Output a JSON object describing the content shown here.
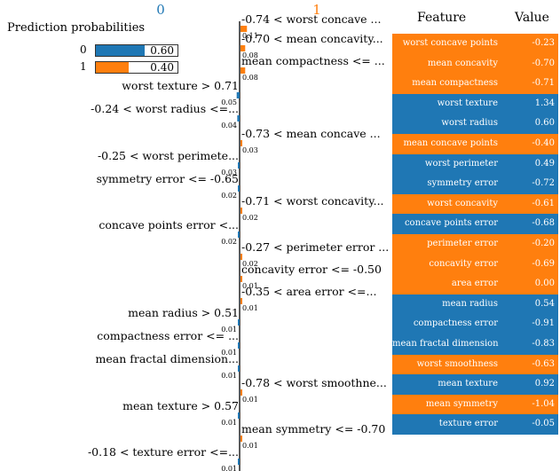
{
  "prediction_probabilities": {
    "title": "Prediction probabilities",
    "items": [
      {
        "label": "0",
        "value": 0.6,
        "value_text": "0.60",
        "color": "#1f77b4"
      },
      {
        "label": "1",
        "value": 0.4,
        "value_text": "0.40",
        "color": "#ff7f0e"
      }
    ]
  },
  "chart_data": {
    "type": "bar",
    "class_headers": {
      "left": "0",
      "right": "1"
    },
    "colors": {
      "left": "#1f77b4",
      "right": "#ff7f0e"
    },
    "features": [
      {
        "label": "-0.74 < worst concave ...",
        "value": 0.11,
        "value_text": "0.11",
        "side": "right"
      },
      {
        "label": "-0.70 < mean concavity...",
        "value": 0.08,
        "value_text": "0.08",
        "side": "right"
      },
      {
        "label": "mean compactness <= ...",
        "value": 0.08,
        "value_text": "0.08",
        "side": "right"
      },
      {
        "label": "worst texture > 0.71",
        "value": 0.05,
        "value_text": "0.05",
        "side": "left"
      },
      {
        "label": "-0.24 < worst radius <=...",
        "value": 0.04,
        "value_text": "0.04",
        "side": "left"
      },
      {
        "label": "-0.73 < mean concave ...",
        "value": 0.03,
        "value_text": "0.03",
        "side": "right"
      },
      {
        "label": "-0.25 < worst perimete...",
        "value": 0.03,
        "value_text": "0.03",
        "side": "left"
      },
      {
        "label": "symmetry error <= -0.65",
        "value": 0.02,
        "value_text": "0.02",
        "side": "left"
      },
      {
        "label": "-0.71 < worst concavity...",
        "value": 0.02,
        "value_text": "0.02",
        "side": "right"
      },
      {
        "label": "concave points error <...",
        "value": 0.02,
        "value_text": "0.02",
        "side": "left"
      },
      {
        "label": "-0.27 < perimeter error ...",
        "value": 0.02,
        "value_text": "0.02",
        "side": "right"
      },
      {
        "label": "concavity error <= -0.50",
        "value": 0.01,
        "value_text": "0.01",
        "side": "right"
      },
      {
        "label": "-0.35 < area error <=...",
        "value": 0.01,
        "value_text": "0.01",
        "side": "right"
      },
      {
        "label": "mean radius > 0.51",
        "value": 0.01,
        "value_text": "0.01",
        "side": "left"
      },
      {
        "label": "compactness error <= ...",
        "value": 0.01,
        "value_text": "0.01",
        "side": "left"
      },
      {
        "label": "mean fractal dimension...",
        "value": 0.01,
        "value_text": "0.01",
        "side": "left"
      },
      {
        "label": "-0.78 < worst smoothne...",
        "value": 0.01,
        "value_text": "0.01",
        "side": "right"
      },
      {
        "label": "mean texture > 0.57",
        "value": 0.01,
        "value_text": "0.01",
        "side": "left"
      },
      {
        "label": "mean symmetry <= -0.70",
        "value": 0.01,
        "value_text": "0.01",
        "side": "right"
      },
      {
        "label": "-0.18 < texture error <=...",
        "value": 0.01,
        "value_text": "0.01",
        "side": "left"
      }
    ]
  },
  "feature_table": {
    "headers": {
      "feature": "Feature",
      "value": "Value"
    },
    "rows": [
      {
        "feature": "worst concave points",
        "value": "-0.23",
        "color": "#ff7f0e"
      },
      {
        "feature": "mean concavity",
        "value": "-0.70",
        "color": "#ff7f0e"
      },
      {
        "feature": "mean compactness",
        "value": "-0.71",
        "color": "#ff7f0e"
      },
      {
        "feature": "worst texture",
        "value": "1.34",
        "color": "#1f77b4"
      },
      {
        "feature": "worst radius",
        "value": "0.60",
        "color": "#1f77b4"
      },
      {
        "feature": "mean concave points",
        "value": "-0.40",
        "color": "#ff7f0e"
      },
      {
        "feature": "worst perimeter",
        "value": "0.49",
        "color": "#1f77b4"
      },
      {
        "feature": "symmetry error",
        "value": "-0.72",
        "color": "#1f77b4"
      },
      {
        "feature": "worst concavity",
        "value": "-0.61",
        "color": "#ff7f0e"
      },
      {
        "feature": "concave points error",
        "value": "-0.68",
        "color": "#1f77b4"
      },
      {
        "feature": "perimeter error",
        "value": "-0.20",
        "color": "#ff7f0e"
      },
      {
        "feature": "concavity error",
        "value": "-0.69",
        "color": "#ff7f0e"
      },
      {
        "feature": "area error",
        "value": "0.00",
        "color": "#ff7f0e"
      },
      {
        "feature": "mean radius",
        "value": "0.54",
        "color": "#1f77b4"
      },
      {
        "feature": "compactness error",
        "value": "-0.91",
        "color": "#1f77b4"
      },
      {
        "feature": "mean fractal dimension",
        "value": "-0.83",
        "color": "#1f77b4"
      },
      {
        "feature": "worst smoothness",
        "value": "-0.63",
        "color": "#ff7f0e"
      },
      {
        "feature": "mean texture",
        "value": "0.92",
        "color": "#1f77b4"
      },
      {
        "feature": "mean symmetry",
        "value": "-1.04",
        "color": "#ff7f0e"
      },
      {
        "feature": "texture error",
        "value": "-0.05",
        "color": "#1f77b4"
      }
    ]
  }
}
